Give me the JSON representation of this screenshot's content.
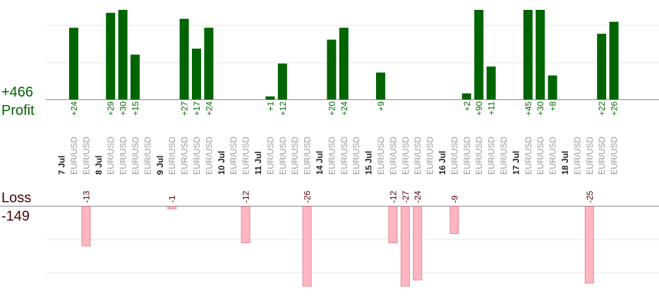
{
  "labels": {
    "profit_total": "+466",
    "profit_label": "Profit",
    "loss_label": "Loss",
    "loss_total": "-149"
  },
  "colors": {
    "profit_bar": "#006400",
    "profit_text": "#006400",
    "loss_bar": "#ffb6c1",
    "loss_bar_stroke": "#e08a98",
    "loss_text": "#4a0000",
    "grid": "#e6e6e6",
    "axis": "#888888"
  },
  "chart_data": {
    "type": "bar",
    "grid": true,
    "ylim_profit": [
      0,
      30
    ],
    "ylim_loss": [
      -26,
      0
    ],
    "dates": [
      {
        "label": "7 Jul",
        "after_index": -1
      },
      {
        "label": "8 Jul",
        "after_index": 1
      },
      {
        "label": "9 Jul",
        "after_index": 5
      },
      {
        "label": "10 Jul",
        "after_index": 9
      },
      {
        "label": "11 Jul",
        "after_index": 11
      },
      {
        "label": "14 Jul",
        "after_index": 15
      },
      {
        "label": "15 Jul",
        "after_index": 18
      },
      {
        "label": "16 Jul",
        "after_index": 23
      },
      {
        "label": "17 Jul",
        "after_index": 28
      },
      {
        "label": "18 Jul",
        "after_index": 31
      }
    ],
    "trades": [
      {
        "category": "EUR/USD",
        "profit": 24,
        "loss": null
      },
      {
        "category": "EUR/USD",
        "profit": null,
        "loss": -13
      },
      {
        "category": "EUR/USD",
        "profit": 29,
        "loss": null
      },
      {
        "category": "EUR/USD",
        "profit": 30,
        "loss": null
      },
      {
        "category": "EUR/USD",
        "profit": 15,
        "loss": null
      },
      {
        "category": "EUR/USD",
        "profit": null,
        "loss": null
      },
      {
        "category": "EUR/USD",
        "profit": null,
        "loss": -1
      },
      {
        "category": "EUR/USD",
        "profit": 27,
        "loss": null
      },
      {
        "category": "EUR/USD",
        "profit": 17,
        "loss": null
      },
      {
        "category": "EUR/USD",
        "profit": 24,
        "loss": null
      },
      {
        "category": "EUR/USD",
        "profit": null,
        "loss": null
      },
      {
        "category": "EUR/USD",
        "profit": null,
        "loss": -12
      },
      {
        "category": "EUR/USD",
        "profit": 1,
        "loss": null
      },
      {
        "category": "EUR/USD",
        "profit": 12,
        "loss": null
      },
      {
        "category": "EUR/USD",
        "profit": null,
        "loss": null
      },
      {
        "category": "EUR/USD",
        "profit": null,
        "loss": -26
      },
      {
        "category": "EUR/USD",
        "profit": 20,
        "loss": null
      },
      {
        "category": "EUR/USD",
        "profit": 24,
        "loss": null
      },
      {
        "category": "EUR/USD",
        "profit": null,
        "loss": null
      },
      {
        "category": "EUR/USD",
        "profit": 9,
        "loss": null
      },
      {
        "category": "EUR/USD",
        "profit": null,
        "loss": -12
      },
      {
        "category": "EUR/USD",
        "profit": null,
        "loss": -27
      },
      {
        "category": "EUR/USD",
        "profit": null,
        "loss": -24
      },
      {
        "category": "EUR/USD",
        "profit": null,
        "loss": null
      },
      {
        "category": "EUR/USD",
        "profit": null,
        "loss": -9
      },
      {
        "category": "EUR/USD",
        "profit": 2,
        "loss": null
      },
      {
        "category": "EUR/USD",
        "profit": 90,
        "loss": null
      },
      {
        "category": "EUR/USD",
        "profit": 11,
        "loss": null
      },
      {
        "category": "EUR/USD",
        "profit": null,
        "loss": null
      },
      {
        "category": "EUR/USD",
        "profit": 45,
        "loss": null
      },
      {
        "category": "EUR/USD",
        "profit": 30,
        "loss": null
      },
      {
        "category": "EUR/USD",
        "profit": 8,
        "loss": null
      },
      {
        "category": "EUR/USD",
        "profit": null,
        "loss": null
      },
      {
        "category": "EUR/USD",
        "profit": null,
        "loss": -25
      },
      {
        "category": "EUR/USD",
        "profit": 22,
        "loss": null
      },
      {
        "category": "EUR/USD",
        "profit": 26,
        "loss": null
      }
    ]
  }
}
